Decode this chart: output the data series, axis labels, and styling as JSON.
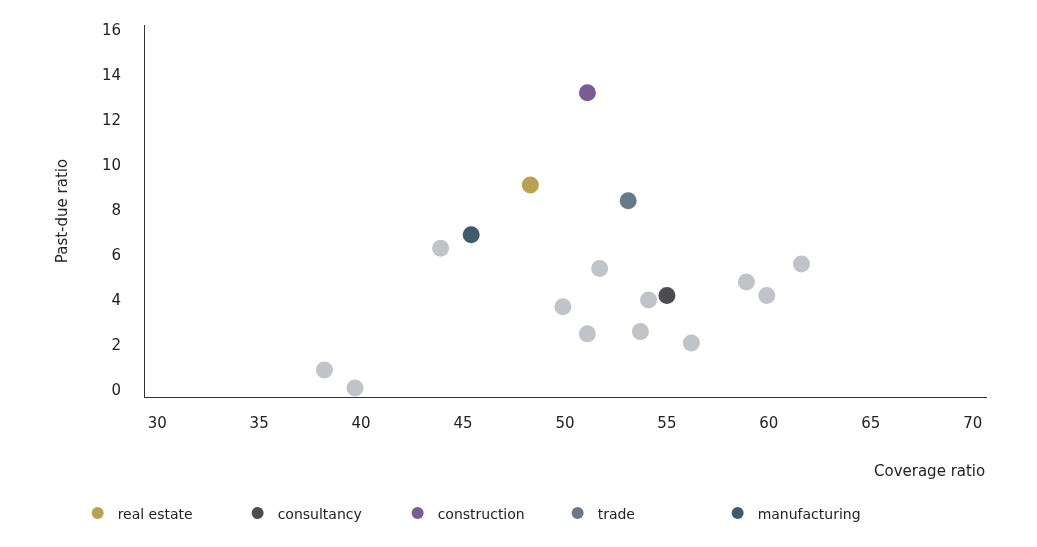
{
  "chart_data": {
    "type": "scatter",
    "xlabel": "Coverage ratio",
    "ylabel": "Past-due ratio",
    "xlim": [
      29.4,
      70.7
    ],
    "xticks": [
      30,
      35,
      40,
      45,
      50,
      55,
      60,
      65,
      70
    ],
    "ylim": [
      -0.3,
      16.2
    ],
    "yticks": [
      0,
      2,
      4,
      6,
      8,
      10,
      12,
      14,
      16
    ],
    "legend": "bottom",
    "series": [
      {
        "color": "#c0c4c9",
        "x": [
          38.2,
          39.7,
          43.9,
          49.9,
          51.1,
          51.7,
          54.1,
          53.7,
          56.2,
          58.9,
          59.9,
          61.6
        ],
        "values": [
          0.9,
          0.1,
          6.3,
          3.7,
          2.5,
          5.4,
          4.0,
          2.6,
          2.1,
          4.8,
          4.2,
          5.6
        ]
      },
      {
        "name": "real estate",
        "color": "#b9a151",
        "x": [
          48.3
        ],
        "values": [
          9.1
        ]
      },
      {
        "name": "consultancy",
        "color": "#4d4d4f",
        "x": [
          55.0
        ],
        "values": [
          4.2
        ]
      },
      {
        "name": "construction",
        "color": "#7a5c94",
        "x": [
          51.1
        ],
        "values": [
          13.2
        ]
      },
      {
        "name": "trade",
        "color": "#687a8a",
        "x": [
          53.1
        ],
        "values": [
          8.4
        ]
      },
      {
        "name": "manufacturing",
        "color": "#3f5a6a",
        "x": [
          45.4
        ],
        "values": [
          6.9
        ]
      }
    ]
  }
}
